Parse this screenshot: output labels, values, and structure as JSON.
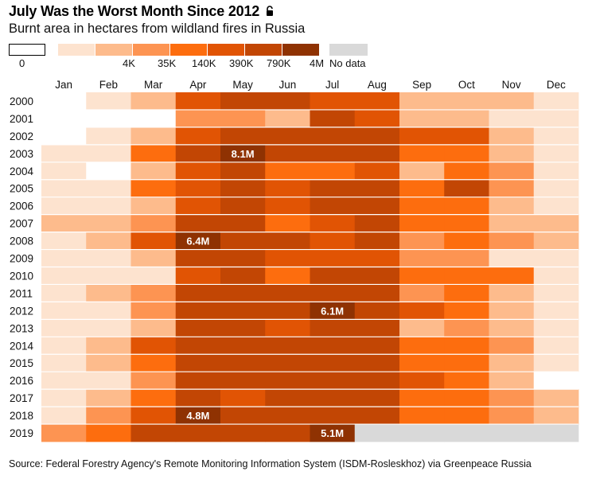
{
  "title": "July Was the Worst Month Since 2012",
  "subtitle": "Burnt area in hectares from wildland fires in Russia",
  "source": "Source: Federal Forestry Agency's Remote Monitoring Information System (ISDM-Rosleskhoz) via Greenpeace Russia",
  "legend": {
    "bins": [
      {
        "color": "#ffffff",
        "label": "0"
      },
      {
        "color": "#fde3cf",
        "label": ""
      },
      {
        "color": "#fdbb8c",
        "label": "4K"
      },
      {
        "color": "#fd9452",
        "label": "35K"
      },
      {
        "color": "#fd6d0e",
        "label": "140K"
      },
      {
        "color": "#e15404",
        "label": "390K"
      },
      {
        "color": "#c24604",
        "label": "790K"
      },
      {
        "color": "#8f3202",
        "label": "4M"
      }
    ],
    "nodata": {
      "color": "#d9d9d9",
      "label": "No data"
    }
  },
  "chart_data": {
    "type": "heatmap",
    "title": "July Was the Worst Month Since 2012",
    "subtitle": "Burnt area in hectares from wildland fires in Russia",
    "x": [
      "Jan",
      "Feb",
      "Mar",
      "Apr",
      "May",
      "Jun",
      "Jul",
      "Aug",
      "Sep",
      "Oct",
      "Nov",
      "Dec"
    ],
    "y": [
      "2000",
      "2001",
      "2002",
      "2003",
      "2004",
      "2005",
      "2006",
      "2007",
      "2008",
      "2009",
      "2010",
      "2011",
      "2012",
      "2013",
      "2014",
      "2015",
      "2016",
      "2017",
      "2018",
      "2019"
    ],
    "value_encoding": "binned color class: 0 = 0 ha, 1 = <4K, 2 = 4K-35K, 3 = 35K-140K, 4 = 140K-390K, 5 = 390K-790K, 6 = 790K-4M, 7 = >4M, -1 = no data",
    "bin_thresholds": [
      "0",
      "4K",
      "35K",
      "140K",
      "390K",
      "790K",
      "4M"
    ],
    "values": [
      [
        0,
        1,
        2,
        5,
        6,
        6,
        5,
        5,
        2,
        2,
        2,
        1
      ],
      [
        0,
        0,
        0,
        3,
        3,
        2,
        6,
        5,
        2,
        2,
        1,
        1
      ],
      [
        0,
        1,
        2,
        5,
        6,
        6,
        6,
        6,
        5,
        5,
        2,
        1
      ],
      [
        1,
        1,
        4,
        6,
        7,
        6,
        6,
        6,
        4,
        4,
        2,
        1
      ],
      [
        1,
        0,
        2,
        5,
        6,
        4,
        4,
        5,
        2,
        4,
        3,
        1
      ],
      [
        1,
        1,
        4,
        5,
        6,
        5,
        6,
        6,
        4,
        6,
        3,
        1
      ],
      [
        1,
        1,
        2,
        5,
        6,
        5,
        6,
        6,
        4,
        4,
        2,
        1
      ],
      [
        2,
        2,
        3,
        6,
        6,
        4,
        5,
        6,
        4,
        4,
        2,
        2
      ],
      [
        1,
        2,
        5,
        7,
        6,
        6,
        5,
        6,
        3,
        4,
        3,
        2
      ],
      [
        1,
        1,
        2,
        6,
        6,
        5,
        5,
        5,
        3,
        3,
        1,
        1
      ],
      [
        1,
        1,
        1,
        5,
        6,
        4,
        6,
        6,
        4,
        4,
        4,
        1
      ],
      [
        1,
        2,
        3,
        6,
        6,
        6,
        6,
        6,
        3,
        4,
        2,
        1
      ],
      [
        1,
        1,
        3,
        6,
        6,
        6,
        7,
        6,
        5,
        4,
        2,
        1
      ],
      [
        1,
        1,
        2,
        6,
        6,
        5,
        6,
        6,
        2,
        3,
        2,
        1
      ],
      [
        1,
        2,
        5,
        6,
        6,
        6,
        6,
        6,
        4,
        4,
        3,
        1
      ],
      [
        1,
        2,
        4,
        6,
        6,
        6,
        6,
        6,
        4,
        4,
        2,
        1
      ],
      [
        1,
        1,
        3,
        6,
        6,
        6,
        6,
        6,
        5,
        4,
        2,
        0
      ],
      [
        1,
        2,
        4,
        6,
        5,
        6,
        6,
        6,
        4,
        4,
        3,
        2
      ],
      [
        1,
        3,
        5,
        7,
        6,
        6,
        6,
        6,
        4,
        4,
        3,
        2
      ],
      [
        3,
        4,
        6,
        6,
        6,
        6,
        7,
        -1,
        -1,
        -1,
        -1,
        -1
      ]
    ],
    "annotations": [
      {
        "year": "2003",
        "month": "May",
        "label": "8.1M"
      },
      {
        "year": "2008",
        "month": "Apr",
        "label": "6.4M"
      },
      {
        "year": "2012",
        "month": "Jul",
        "label": "6.1M"
      },
      {
        "year": "2018",
        "month": "Apr",
        "label": "4.8M"
      },
      {
        "year": "2019",
        "month": "Jul",
        "label": "5.1M"
      }
    ]
  }
}
